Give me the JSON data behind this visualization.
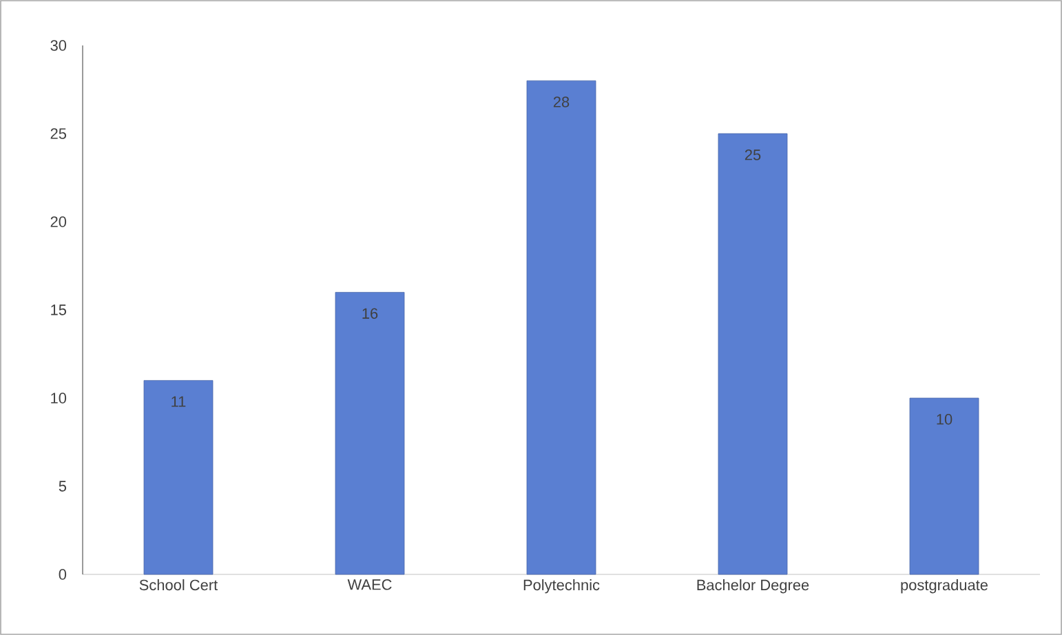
{
  "chart_data": {
    "type": "bar",
    "categories": [
      "School Cert",
      "WAEC",
      "Polytechnic",
      "Bachelor Degree",
      "postgraduate"
    ],
    "values": [
      11,
      16,
      28,
      25,
      10
    ],
    "color": "#5a7fd2",
    "ylim": [
      0,
      30
    ],
    "yticks": [
      0,
      5,
      10,
      15,
      20,
      25,
      30
    ],
    "grid": false,
    "data_labels": true
  }
}
